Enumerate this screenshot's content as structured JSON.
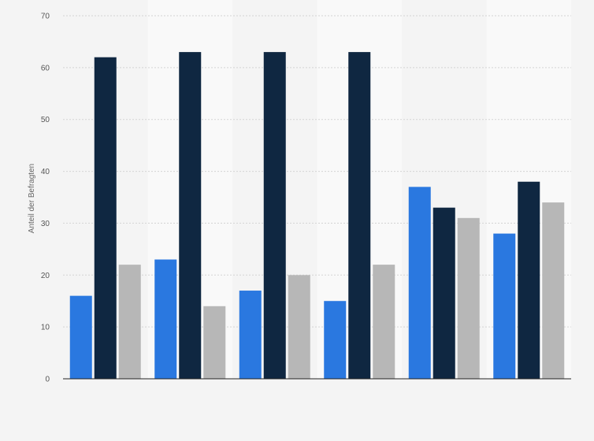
{
  "chart_data": {
    "type": "bar",
    "title": "",
    "xlabel": "",
    "ylabel": "Anteil der Befragten",
    "ylim": [
      0,
      70
    ],
    "yticks": [
      0,
      10,
      20,
      30,
      40,
      50,
      60,
      70
    ],
    "grid": true,
    "legend": "none",
    "categories": [
      "",
      "",
      "",
      "",
      "",
      ""
    ],
    "series": [
      {
        "color": "#2a78e0",
        "values": [
          16,
          23,
          17,
          15,
          37,
          28
        ]
      },
      {
        "color": "#0f2741",
        "values": [
          62,
          63,
          63,
          63,
          33,
          38
        ]
      },
      {
        "color": "#b7b7b7",
        "values": [
          22,
          14,
          20,
          22,
          31,
          34
        ]
      }
    ]
  }
}
